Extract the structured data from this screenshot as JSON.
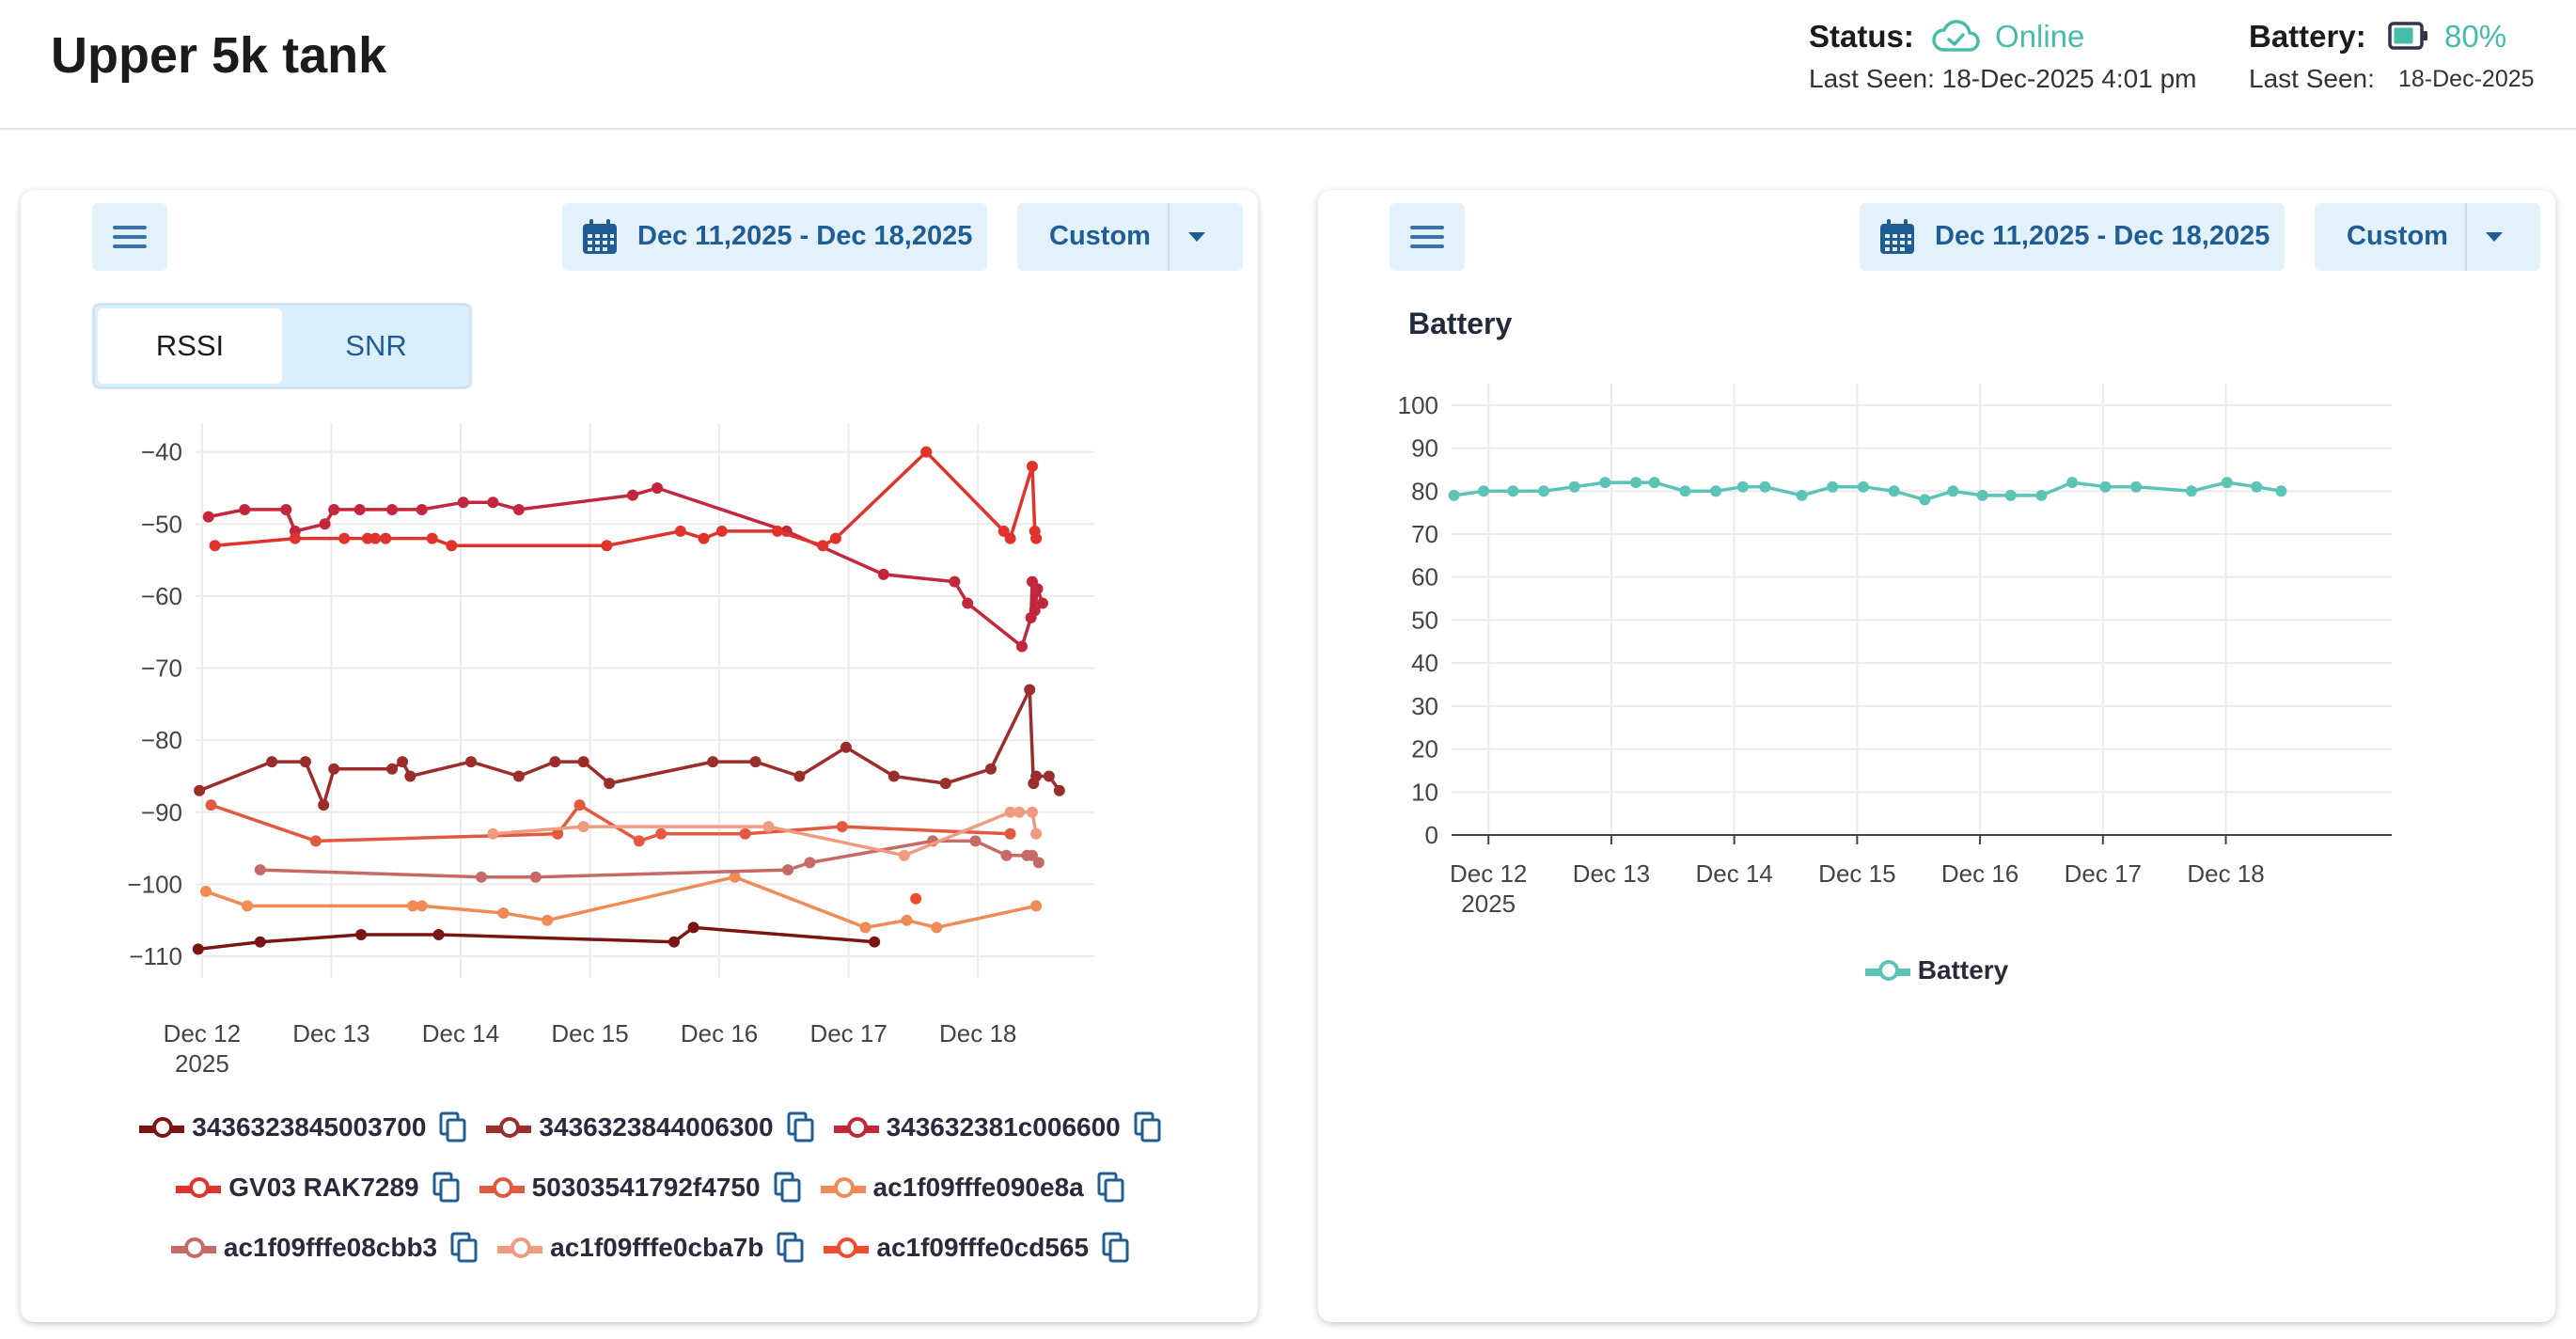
{
  "header": {
    "title": "Upper 5k tank",
    "status_label": "Status:",
    "status_value": "Online",
    "status_last_seen": "Last Seen: 18-Dec-2025 4:01 pm",
    "battery_label": "Battery:",
    "battery_value": "80%",
    "battery_level": 0.8,
    "battery_last_seen_label": "Last Seen:",
    "battery_last_seen_date": "18-Dec-2025"
  },
  "colors": {
    "accent": "#47bda9",
    "button_bg": "#e3f1fb",
    "button_text": "#1f5d94"
  },
  "left_panel": {
    "date_range": "Dec 11,2025 - Dec 18,2025",
    "range_select": "Custom",
    "toggle": [
      "RSSI",
      "SNR"
    ],
    "active_toggle": "RSSI"
  },
  "right_panel": {
    "date_range": "Dec 11,2025 - Dec 18,2025",
    "range_select": "Custom"
  },
  "chart_data": [
    {
      "type": "line",
      "grid": true,
      "legend_position": "bottom",
      "ylim": [
        -113,
        -36
      ],
      "yticks": [
        -40,
        -50,
        -60,
        -70,
        -80,
        -90,
        -100,
        -110
      ],
      "ytick_labels": [
        "−40",
        "−50",
        "−60",
        "−70",
        "−80",
        "−90",
        "−100",
        "−110"
      ],
      "xlim": [
        11.95,
        18.9
      ],
      "xticks": [
        12,
        13,
        14,
        15,
        16,
        17,
        18
      ],
      "xtick_labels": [
        "Dec 12",
        "Dec 13",
        "Dec 14",
        "Dec 15",
        "Dec 16",
        "Dec 17",
        "Dec 18"
      ],
      "xtick_sublabel": "2025",
      "series": [
        {
          "name": "3436323845003700",
          "color": "#7a1512",
          "x": [
            11.97,
            12.45,
            13.23,
            13.83,
            15.65,
            15.8,
            17.2
          ],
          "y": [
            -109,
            -108,
            -107,
            -107,
            -108,
            -106,
            -108
          ]
        },
        {
          "name": "3436323844006300",
          "color": "#9b2d2c",
          "x": [
            11.98,
            12.54,
            12.8,
            12.94,
            13.02,
            13.47,
            13.55,
            13.61,
            14.08,
            14.45,
            14.73,
            14.95,
            15.15,
            15.95,
            16.28,
            16.62,
            16.98,
            17.35,
            17.75,
            18.1,
            18.4,
            18.43,
            18.45,
            18.55,
            18.63
          ],
          "y": [
            -87,
            -83,
            -83,
            -89,
            -84,
            -84,
            -83,
            -85,
            -83,
            -85,
            -83,
            -83,
            -86,
            -83,
            -83,
            -85,
            -81,
            -85,
            -86,
            -84,
            -73,
            -86,
            -85,
            -85,
            -87
          ]
        },
        {
          "name": "343632381c006600",
          "color": "#c3273d",
          "x": [
            12.05,
            12.33,
            12.65,
            12.72,
            12.95,
            13.02,
            13.22,
            13.47,
            13.7,
            14.02,
            14.25,
            14.45,
            15.33,
            15.52,
            16.52,
            17.27,
            17.82,
            17.92,
            18.34,
            18.41,
            18.42,
            18.44,
            18.46,
            18.5
          ],
          "y": [
            -49,
            -48,
            -48,
            -51,
            -50,
            -48,
            -48,
            -48,
            -48,
            -47,
            -47,
            -48,
            -46,
            -45,
            -51,
            -57,
            -58,
            -61,
            -67,
            -63,
            -58,
            -62,
            -59,
            -61
          ]
        },
        {
          "name": "GV03 RAK7289",
          "color": "#e0332c",
          "x": [
            12.1,
            12.72,
            13.1,
            13.28,
            13.34,
            13.42,
            13.78,
            13.93,
            15.13,
            15.7,
            15.88,
            16.02,
            16.45,
            16.8,
            16.9,
            17.6,
            18.2,
            18.25,
            18.42,
            18.44,
            18.45
          ],
          "y": [
            -53,
            -52,
            -52,
            -52,
            -52,
            -52,
            -52,
            -53,
            -53,
            -51,
            -52,
            -51,
            -51,
            -53,
            -52,
            -40,
            -51,
            -52,
            -42,
            -51,
            -52
          ]
        },
        {
          "name": "50303541792f4750",
          "color": "#e2593f",
          "x": [
            12.07,
            12.88,
            14.75,
            14.92,
            15.38,
            15.55,
            16.2,
            16.95,
            18.25
          ],
          "y": [
            -89,
            -94,
            -93,
            -89,
            -94,
            -93,
            -93,
            -92,
            -93
          ]
        },
        {
          "name": "ac1f09fffe090e8a",
          "color": "#ef8b55",
          "x": [
            12.03,
            12.35,
            13.63,
            13.7,
            14.33,
            14.67,
            16.12,
            17.13,
            17.45,
            17.68,
            18.45
          ],
          "y": [
            -101,
            -103,
            -103,
            -103,
            -104,
            -105,
            -99,
            -106,
            -105,
            -106,
            -103
          ]
        },
        {
          "name": "ac1f09fffe08cbb3",
          "color": "#c66a67",
          "x": [
            12.45,
            14.16,
            14.58,
            16.53,
            16.7,
            17.65,
            17.98,
            18.22,
            18.38,
            18.42,
            18.47
          ],
          "y": [
            -98,
            -99,
            -99,
            -98,
            -97,
            -94,
            -94,
            -96,
            -96,
            -96,
            -97
          ]
        },
        {
          "name": "ac1f09fffe0cba7b",
          "color": "#f09a80",
          "x": [
            14.25,
            14.95,
            16.38,
            17.43,
            18.25,
            18.32,
            18.42,
            18.45
          ],
          "y": [
            -93,
            -92,
            -92,
            -96,
            -90,
            -90,
            -90,
            -93
          ]
        },
        {
          "name": "ac1f09fffe0cd565",
          "color": "#ef4d2e",
          "x": [
            17.52
          ],
          "y": [
            -102
          ]
        }
      ]
    },
    {
      "type": "line",
      "title": "Battery",
      "grid": true,
      "legend_position": "bottom",
      "ylim": [
        0,
        105
      ],
      "yticks": [
        0,
        10,
        20,
        30,
        40,
        50,
        60,
        70,
        80,
        90,
        100
      ],
      "xlim": [
        11.7,
        19.35
      ],
      "xticks": [
        12,
        13,
        14,
        15,
        16,
        17,
        18
      ],
      "xtick_labels": [
        "Dec 12",
        "Dec 13",
        "Dec 14",
        "Dec 15",
        "Dec 16",
        "Dec 17",
        "Dec 18"
      ],
      "xtick_sublabel": "2025",
      "series": [
        {
          "name": "Battery",
          "color": "#5cc4b6",
          "x": [
            11.72,
            11.96,
            12.2,
            12.45,
            12.7,
            12.95,
            13.2,
            13.35,
            13.6,
            13.85,
            14.07,
            14.25,
            14.55,
            14.8,
            15.05,
            15.3,
            15.55,
            15.78,
            16.02,
            16.25,
            16.5,
            16.75,
            17.02,
            17.27,
            17.72,
            18.01,
            18.25,
            18.45
          ],
          "y": [
            79,
            80,
            80,
            80,
            81,
            82,
            82,
            82,
            80,
            80,
            81,
            81,
            79,
            81,
            81,
            80,
            78,
            80,
            79,
            79,
            79,
            82,
            81,
            81,
            80,
            82,
            81,
            80
          ]
        }
      ]
    }
  ]
}
